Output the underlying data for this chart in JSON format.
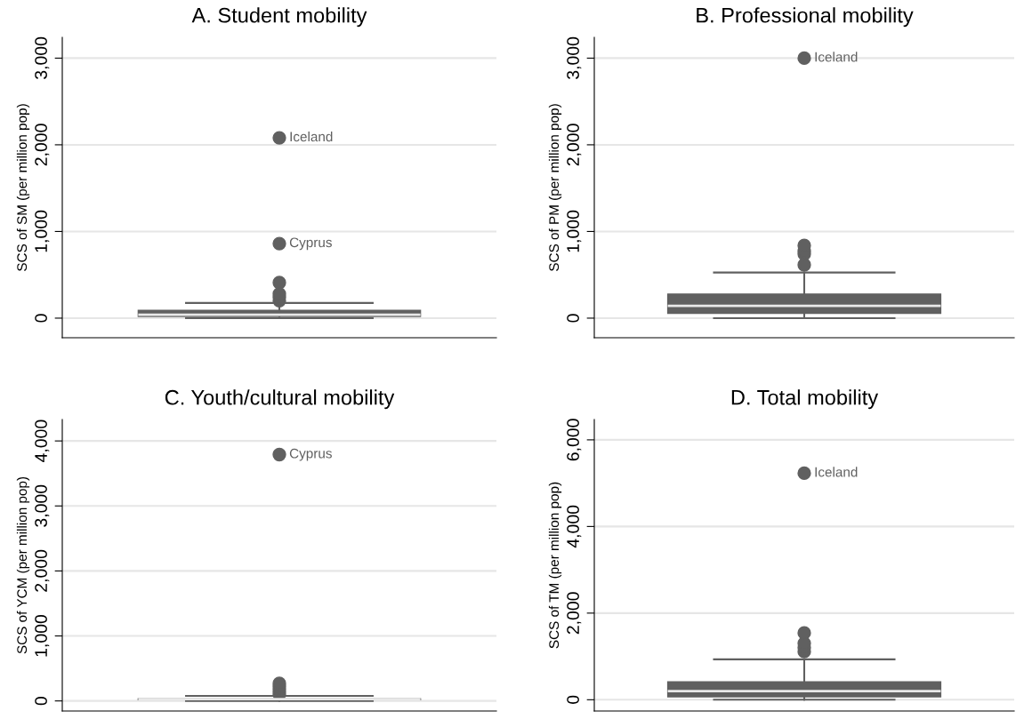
{
  "chart_data": [
    {
      "type": "box",
      "title": "A. Student mobility",
      "ylabel": "SCS of SM (per million pop)",
      "categories": [
        null
      ],
      "color": "#606060",
      "ylim": [
        -226,
        3240
      ],
      "yticks": [
        {
          "value": 0,
          "label": "0"
        },
        {
          "value": 1000,
          "label": "1,000"
        },
        {
          "value": 2000,
          "label": "2,000"
        },
        {
          "value": 3000,
          "label": "3,000"
        }
      ],
      "grid": "y",
      "tick_labels": "y",
      "boxes": [
        {
          "low": 0,
          "q1": 20,
          "median": 40,
          "q3": 90,
          "high": 175,
          "outliers": [
            200,
            240,
            280,
            410,
            860,
            2080
          ]
        }
      ],
      "annotations": [
        "Iceland",
        "Cyprus"
      ]
    },
    {
      "type": "box",
      "title": "B. Professional mobility",
      "ylabel": "SCS of PM (per million pop)",
      "categories": [
        null
      ],
      "color": "#606060",
      "ylim": [
        -226,
        3240
      ],
      "yticks": [
        {
          "value": 0,
          "label": "0"
        },
        {
          "value": 1000,
          "label": "1,000"
        },
        {
          "value": 2000,
          "label": "2,000"
        },
        {
          "value": 3000,
          "label": "3,000"
        }
      ],
      "grid": "y",
      "tick_labels": "y",
      "boxes": [
        {
          "low": 0,
          "q1": 55,
          "median": 141,
          "q3": 278,
          "high": 526,
          "outliers": [
            615,
            740,
            773,
            838,
            3000
          ]
        }
      ],
      "annotations": [
        "Iceland"
      ]
    },
    {
      "type": "box",
      "title": "C. Youth/cultural mobility",
      "ylabel": "SCS of YCM (per million pop)",
      "categories": [
        null
      ],
      "color": "#606060",
      "ylim": [
        -155,
        4330
      ],
      "yticks": [
        {
          "value": 0,
          "label": "0"
        },
        {
          "value": 1000,
          "label": "1,000"
        },
        {
          "value": 2000,
          "label": "2,000"
        },
        {
          "value": 3000,
          "label": "3,000"
        },
        {
          "value": 4000,
          "label": "4,000"
        }
      ],
      "grid": "y",
      "tick_labels": "y",
      "boxes": [
        {
          "low": 0,
          "q1": 20,
          "median": 28,
          "q3": 35,
          "high": 78,
          "outliers": [
            100,
            140,
            180,
            220,
            270,
            3790
          ]
        }
      ],
      "annotations": [
        "Cyprus"
      ]
    },
    {
      "type": "box",
      "title": "D. Total mobility",
      "ylabel": "SCS of TM (per million pop)",
      "categories": [
        null
      ],
      "color": "#606060",
      "ylim": [
        -260,
        6470
      ],
      "yticks": [
        {
          "value": 0,
          "label": "0"
        },
        {
          "value": 2000,
          "label": "2,000"
        },
        {
          "value": 4000,
          "label": "4,000"
        },
        {
          "value": 6000,
          "label": "6,000"
        }
      ],
      "grid": "y",
      "tick_labels": "y",
      "boxes": [
        {
          "low": 0,
          "q1": 68,
          "median": 198,
          "q3": 411,
          "high": 932,
          "outliers": [
            1111,
            1200,
            1302,
            1543,
            5230
          ]
        }
      ],
      "annotations": [
        "Iceland"
      ]
    }
  ]
}
